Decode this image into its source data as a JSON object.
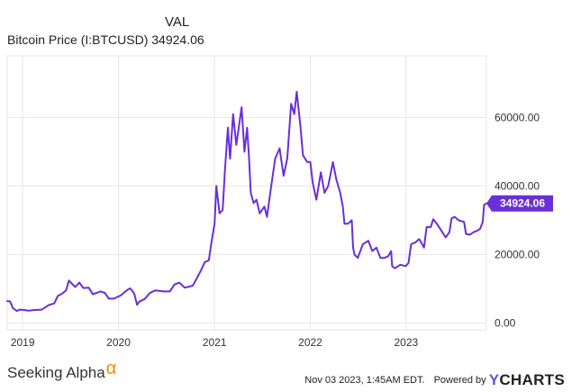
{
  "header": {
    "title": "VAL",
    "series_label": "Bitcoin Price (I:BTCUSD) 34924.06"
  },
  "footer": {
    "brand": "Seeking Alpha",
    "brand_symbol": "α",
    "timestamp": "Nov 03 2023, 1:45AM EDT.",
    "powered_by": "Powered by",
    "provider_y": "Y",
    "provider_rest": "CHARTS"
  },
  "colors": {
    "line": "#6a2fd6",
    "badge": "#6a2fd6",
    "grid": "#e6e6e6",
    "brand_symbol": "#f28c00"
  },
  "chart_data": {
    "type": "line",
    "title": "",
    "xlabel": "",
    "ylabel": "",
    "ylim": [
      -2000,
      78000
    ],
    "xlim": [
      "2018-11-03",
      "2023-11-03"
    ],
    "grid": true,
    "y_axis_side": "right",
    "y_ticks": [
      "0.00",
      "20000.00",
      "40000.00",
      "60000.00"
    ],
    "y_tick_values": [
      0,
      20000,
      40000,
      60000
    ],
    "x_tick_labels": [
      "2019",
      "2020",
      "2021",
      "2022",
      "2023"
    ],
    "x_tick_dates": [
      "2019-01-01",
      "2020-01-01",
      "2021-01-01",
      "2022-01-01",
      "2023-01-01"
    ],
    "last_value_label": "34924.06",
    "series": [
      {
        "x": [
          "2018-11-03",
          "2018-11-14",
          "2018-11-25",
          "2018-12-10",
          "2018-12-20",
          "2019-01-05",
          "2019-01-25",
          "2019-02-15",
          "2019-03-15",
          "2019-04-10",
          "2019-05-01",
          "2019-05-15",
          "2019-05-30",
          "2019-06-15",
          "2019-06-26",
          "2019-07-10",
          "2019-07-20",
          "2019-08-05",
          "2019-08-20",
          "2019-09-10",
          "2019-09-25",
          "2019-10-25",
          "2019-11-10",
          "2019-11-25",
          "2019-12-15",
          "2020-01-10",
          "2020-02-05",
          "2020-02-15",
          "2020-03-01",
          "2020-03-12",
          "2020-03-20",
          "2020-04-10",
          "2020-04-30",
          "2020-05-20",
          "2020-06-20",
          "2020-07-15",
          "2020-08-01",
          "2020-08-20",
          "2020-09-10",
          "2020-10-10",
          "2020-10-25",
          "2020-11-10",
          "2020-11-25",
          "2020-12-10",
          "2020-12-20",
          "2021-01-01",
          "2021-01-08",
          "2021-01-20",
          "2021-02-01",
          "2021-02-10",
          "2021-02-21",
          "2021-03-01",
          "2021-03-13",
          "2021-03-25",
          "2021-04-05",
          "2021-04-14",
          "2021-04-25",
          "2021-05-05",
          "2021-05-12",
          "2021-05-19",
          "2021-05-30",
          "2021-06-10",
          "2021-06-22",
          "2021-07-10",
          "2021-07-20",
          "2021-08-05",
          "2021-08-20",
          "2021-09-06",
          "2021-09-21",
          "2021-10-05",
          "2021-10-20",
          "2021-11-01",
          "2021-11-10",
          "2021-11-25",
          "2021-12-04",
          "2021-12-20",
          "2022-01-01",
          "2022-01-10",
          "2022-01-24",
          "2022-02-10",
          "2022-02-24",
          "2022-03-10",
          "2022-03-28",
          "2022-04-10",
          "2022-04-25",
          "2022-05-05",
          "2022-05-11",
          "2022-05-25",
          "2022-06-08",
          "2022-06-13",
          "2022-06-18",
          "2022-07-01",
          "2022-07-20",
          "2022-08-10",
          "2022-08-25",
          "2022-09-10",
          "2022-09-25",
          "2022-10-10",
          "2022-10-25",
          "2022-11-05",
          "2022-11-09",
          "2022-11-20",
          "2022-12-10",
          "2022-12-30",
          "2023-01-10",
          "2023-01-20",
          "2023-02-05",
          "2023-02-20",
          "2023-03-10",
          "2023-03-20",
          "2023-04-05",
          "2023-04-14",
          "2023-04-28",
          "2023-05-15",
          "2023-06-01",
          "2023-06-15",
          "2023-06-23",
          "2023-07-05",
          "2023-07-20",
          "2023-08-10",
          "2023-08-17",
          "2023-09-01",
          "2023-09-15",
          "2023-09-30",
          "2023-10-10",
          "2023-10-20",
          "2023-10-25",
          "2023-11-03"
        ],
        "y": [
          6400,
          6300,
          4300,
          3500,
          3900,
          3800,
          3600,
          3800,
          3900,
          5200,
          5700,
          7900,
          8500,
          9500,
          12400,
          11300,
          10500,
          11800,
          10200,
          10300,
          8400,
          9200,
          8800,
          7100,
          7100,
          8100,
          9700,
          10100,
          8600,
          5300,
          6200,
          7000,
          8800,
          9500,
          9200,
          9200,
          11200,
          11800,
          10300,
          10900,
          13000,
          15300,
          17800,
          18300,
          23500,
          29000,
          40000,
          32000,
          33000,
          45000,
          57000,
          48000,
          61000,
          52000,
          58000,
          63000,
          50000,
          57000,
          49000,
          38000,
          35000,
          36000,
          32000,
          34000,
          31000,
          40000,
          48000,
          51000,
          43000,
          48000,
          64000,
          61000,
          67500,
          57000,
          49000,
          47000,
          47000,
          41000,
          36000,
          44000,
          38000,
          40000,
          47000,
          42000,
          38000,
          34000,
          29000,
          29000,
          30000,
          22000,
          20000,
          19000,
          23000,
          24000,
          21000,
          22000,
          19000,
          19000,
          19500,
          21000,
          16500,
          16000,
          17000,
          16600,
          17500,
          23000,
          23500,
          24500,
          22000,
          28000,
          28000,
          30300,
          29000,
          27000,
          25000,
          26500,
          30500,
          31000,
          30000,
          29500,
          26000,
          25800,
          26500,
          27000,
          27500,
          29500,
          34500,
          34924.06
        ]
      }
    ]
  }
}
